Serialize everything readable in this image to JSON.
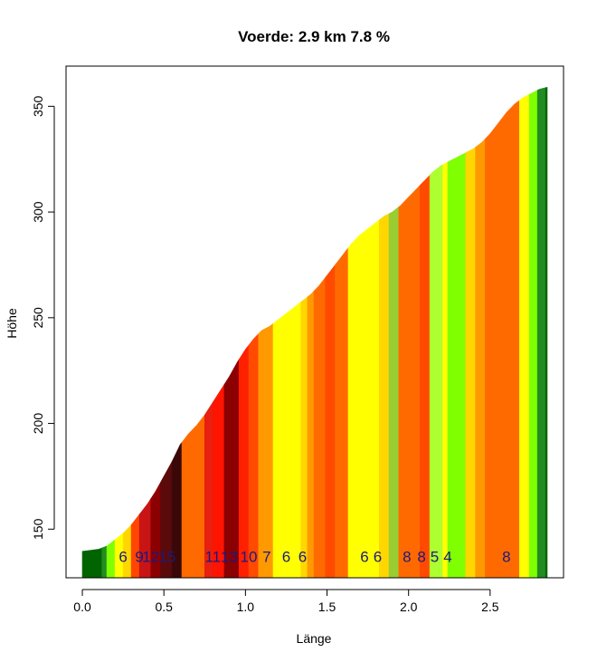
{
  "chart_data": {
    "type": "area",
    "title": "Voerde: 2.9 km 7.8 %",
    "xlabel": "Länge",
    "ylabel": "Höhe",
    "xlim": [
      -0.1,
      2.95
    ],
    "ylim": [
      127,
      369
    ],
    "xticks": [
      0.0,
      0.5,
      1.0,
      1.5,
      2.0,
      2.5
    ],
    "xtick_labels": [
      "0.0",
      "0.5",
      "1.0",
      "1.5",
      "2.0",
      "2.5"
    ],
    "yticks": [
      150,
      200,
      250,
      300,
      350
    ],
    "ytick_labels": [
      "150",
      "200",
      "250",
      "300",
      "350"
    ],
    "grid": false,
    "legend": "none",
    "profile": {
      "x": [
        0.0,
        0.05,
        0.1,
        0.15,
        0.2,
        0.25,
        0.3,
        0.35,
        0.4,
        0.45,
        0.5,
        0.55,
        0.6,
        0.65,
        0.7,
        0.75,
        0.8,
        0.85,
        0.9,
        0.95,
        1.0,
        1.05,
        1.1,
        1.15,
        1.2,
        1.25,
        1.3,
        1.35,
        1.4,
        1.45,
        1.5,
        1.55,
        1.6,
        1.65,
        1.7,
        1.75,
        1.8,
        1.85,
        1.9,
        1.95,
        2.0,
        2.05,
        2.1,
        2.15,
        2.2,
        2.25,
        2.3,
        2.35,
        2.4,
        2.45,
        2.5,
        2.55,
        2.6,
        2.65,
        2.7,
        2.75,
        2.8,
        2.85
      ],
      "y": [
        139.5,
        140,
        140.5,
        142,
        145,
        148,
        152,
        157,
        162,
        168,
        175,
        182,
        190,
        195,
        199,
        204,
        210,
        216,
        222,
        229,
        235,
        240,
        244,
        246,
        249,
        252,
        255,
        258,
        261,
        265,
        270,
        275,
        280,
        285,
        289,
        292,
        295,
        298,
        300,
        303,
        307,
        311,
        315,
        319,
        322,
        324,
        326,
        328,
        330,
        333,
        337,
        342,
        347,
        351,
        354,
        356,
        358,
        359
      ]
    },
    "segments": [
      {
        "x0": 0.0,
        "x1": 0.12,
        "color": "#006400"
      },
      {
        "x0": 0.12,
        "x1": 0.15,
        "color": "#228b22"
      },
      {
        "x0": 0.15,
        "x1": 0.2,
        "color": "#7fff00"
      },
      {
        "x0": 0.2,
        "x1": 0.25,
        "color": "#ffff00"
      },
      {
        "x0": 0.25,
        "x1": 0.3,
        "color": "#ffd700"
      },
      {
        "x0": 0.3,
        "x1": 0.35,
        "color": "#ff4500"
      },
      {
        "x0": 0.35,
        "x1": 0.42,
        "color": "#c81414"
      },
      {
        "x0": 0.42,
        "x1": 0.48,
        "color": "#8b0000"
      },
      {
        "x0": 0.48,
        "x1": 0.55,
        "color": "#5a0a0a"
      },
      {
        "x0": 0.55,
        "x1": 0.61,
        "color": "#3a0808"
      },
      {
        "x0": 0.61,
        "x1": 0.69,
        "color": "#ff6a00"
      },
      {
        "x0": 0.69,
        "x1": 0.75,
        "color": "#ff6a00"
      },
      {
        "x0": 0.75,
        "x1": 0.8,
        "color": "#e82010"
      },
      {
        "x0": 0.8,
        "x1": 0.87,
        "color": "#ff1400"
      },
      {
        "x0": 0.87,
        "x1": 0.96,
        "color": "#8b0000"
      },
      {
        "x0": 0.96,
        "x1": 1.02,
        "color": "#ff2000"
      },
      {
        "x0": 1.02,
        "x1": 1.08,
        "color": "#ff4a00"
      },
      {
        "x0": 1.08,
        "x1": 1.17,
        "color": "#ff9900"
      },
      {
        "x0": 1.17,
        "x1": 1.34,
        "color": "#ffff00"
      },
      {
        "x0": 1.34,
        "x1": 1.38,
        "color": "#ffd700"
      },
      {
        "x0": 1.38,
        "x1": 1.42,
        "color": "#ff9900"
      },
      {
        "x0": 1.42,
        "x1": 1.49,
        "color": "#ff6a00"
      },
      {
        "x0": 1.49,
        "x1": 1.55,
        "color": "#ff4a00"
      },
      {
        "x0": 1.55,
        "x1": 1.63,
        "color": "#ff6a00"
      },
      {
        "x0": 1.63,
        "x1": 1.82,
        "color": "#ffff00"
      },
      {
        "x0": 1.82,
        "x1": 1.88,
        "color": "#ffd700"
      },
      {
        "x0": 1.88,
        "x1": 1.94,
        "color": "#9acd32"
      },
      {
        "x0": 1.94,
        "x1": 2.07,
        "color": "#ff6a00"
      },
      {
        "x0": 2.07,
        "x1": 2.13,
        "color": "#ff4a00"
      },
      {
        "x0": 2.13,
        "x1": 2.21,
        "color": "#adff2f"
      },
      {
        "x0": 2.21,
        "x1": 2.24,
        "color": "#ffff00"
      },
      {
        "x0": 2.24,
        "x1": 2.35,
        "color": "#7fff00"
      },
      {
        "x0": 2.35,
        "x1": 2.41,
        "color": "#ffd700"
      },
      {
        "x0": 2.41,
        "x1": 2.47,
        "color": "#ff9900"
      },
      {
        "x0": 2.47,
        "x1": 2.68,
        "color": "#ff6a00"
      },
      {
        "x0": 2.68,
        "x1": 2.74,
        "color": "#ffff00"
      },
      {
        "x0": 2.74,
        "x1": 2.79,
        "color": "#7fff00"
      },
      {
        "x0": 2.79,
        "x1": 2.84,
        "color": "#228b22"
      },
      {
        "x0": 2.84,
        "x1": 2.85,
        "color": "#006400"
      }
    ],
    "grade_labels": [
      {
        "x": 0.25,
        "text": "6"
      },
      {
        "x": 0.35,
        "text": "9"
      },
      {
        "x": 0.42,
        "text": "12"
      },
      {
        "x": 0.52,
        "text": "15"
      },
      {
        "x": 0.8,
        "text": "11"
      },
      {
        "x": 0.9,
        "text": "13"
      },
      {
        "x": 1.02,
        "text": "10"
      },
      {
        "x": 1.13,
        "text": "7"
      },
      {
        "x": 1.25,
        "text": "6"
      },
      {
        "x": 1.35,
        "text": "6"
      },
      {
        "x": 1.73,
        "text": "6"
      },
      {
        "x": 1.81,
        "text": "6"
      },
      {
        "x": 1.99,
        "text": "8"
      },
      {
        "x": 2.08,
        "text": "8"
      },
      {
        "x": 2.16,
        "text": "5"
      },
      {
        "x": 2.24,
        "text": "4"
      },
      {
        "x": 2.6,
        "text": "8"
      }
    ],
    "label_level": 137,
    "colors": {
      "grade_label": "#1a1a80",
      "axis": "#000000",
      "background": "#ffffff"
    }
  }
}
